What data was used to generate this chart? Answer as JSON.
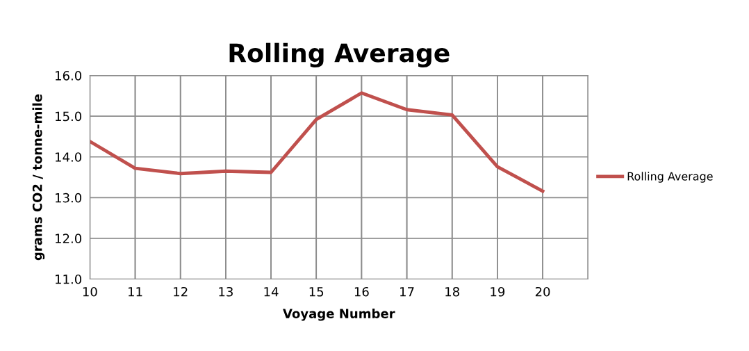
{
  "chart_data": {
    "type": "line",
    "title": "Rolling Average",
    "xlabel": "Voyage Number",
    "ylabel": "grams CO2 / tonne-mile",
    "x": [
      10,
      11,
      12,
      13,
      14,
      15,
      16,
      17,
      18,
      19,
      20
    ],
    "series": [
      {
        "name": "Rolling Average",
        "color": "#c0504d",
        "values": [
          14.38,
          13.72,
          13.59,
          13.65,
          13.62,
          14.92,
          15.57,
          15.16,
          15.03,
          13.76,
          13.16
        ]
      }
    ],
    "xlim": [
      10,
      21
    ],
    "xticks": [
      10,
      11,
      12,
      13,
      14,
      15,
      16,
      17,
      18,
      19,
      20
    ],
    "ylim": [
      11,
      16
    ],
    "yticks": [
      {
        "value": 11,
        "label": "11.0"
      },
      {
        "value": 12,
        "label": "12.0"
      },
      {
        "value": 13,
        "label": "13.0"
      },
      {
        "value": 14,
        "label": "14.0"
      },
      {
        "value": 15,
        "label": "15.0"
      },
      {
        "value": 16,
        "label": "16.0"
      }
    ],
    "grid": true,
    "legend": "right",
    "marker": "none",
    "line_style": "solid"
  }
}
